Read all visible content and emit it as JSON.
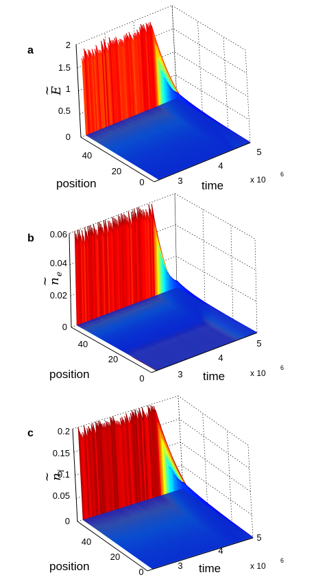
{
  "chart_data": [
    {
      "panel": "a",
      "type": "surface",
      "zlabel": "E",
      "zlabel_accent": "~",
      "zlabel_sub": "",
      "xlabel": "time",
      "ylabel": "position",
      "x_ticks": [
        "3",
        "4",
        "5"
      ],
      "x_multiplier": "x 10",
      "x_multiplier_exp": "6",
      "y_ticks": [
        "0",
        "20",
        "40"
      ],
      "z_ticks": [
        "0",
        "0.5",
        "1",
        "1.5",
        "2"
      ],
      "zlim": [
        0,
        2
      ],
      "xlim": [
        2.5,
        5
      ],
      "ylim": [
        0,
        50
      ],
      "peak_value": 1.85,
      "colormap": "jet",
      "grid": true
    },
    {
      "panel": "b",
      "type": "surface",
      "zlabel": "n",
      "zlabel_accent": "~",
      "zlabel_sub": "e",
      "xlabel": "time",
      "ylabel": "position",
      "x_ticks": [
        "3",
        "4",
        "5"
      ],
      "x_multiplier": "x 10",
      "x_multiplier_exp": "6",
      "y_ticks": [
        "0",
        "20",
        "40"
      ],
      "z_ticks": [
        "0",
        "0.02",
        "0.04",
        "0.06"
      ],
      "zlim": [
        0,
        0.06
      ],
      "xlim": [
        2.5,
        5
      ],
      "ylim": [
        0,
        50
      ],
      "peak_value": 0.062,
      "colormap": "jet",
      "grid": true
    },
    {
      "panel": "c",
      "type": "surface",
      "zlabel": "n",
      "zlabel_accent": "~",
      "zlabel_sub": "i",
      "xlabel": "time",
      "ylabel": "position",
      "x_ticks": [
        "3",
        "4",
        "5"
      ],
      "x_multiplier": "x 10",
      "x_multiplier_exp": "6",
      "y_ticks": [
        "0",
        "20",
        "40"
      ],
      "z_ticks": [
        "0",
        "0.05",
        "0.1",
        "0.15",
        "0.2"
      ],
      "zlim": [
        0,
        0.2
      ],
      "xlim": [
        2.5,
        5
      ],
      "ylim": [
        0,
        50
      ],
      "peak_value": 0.2,
      "colormap": "jet",
      "grid": true
    }
  ]
}
